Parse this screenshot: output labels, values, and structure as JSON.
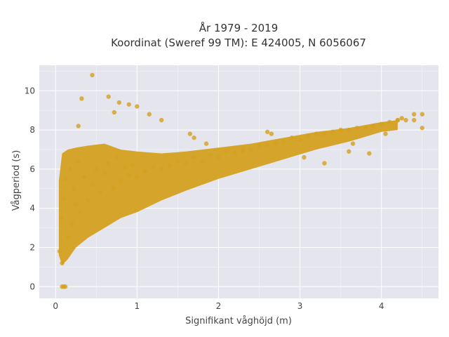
{
  "chart_data": {
    "type": "scatter",
    "title": "År 1979 - 2019",
    "subtitle": "Koordinat (Sweref 99 TM): E 424005, N 6056067",
    "xlabel": "Signifikant våghöjd (m)",
    "ylabel": "Vågperiod (s)",
    "xlim": [
      -0.2,
      4.7
    ],
    "ylim": [
      -0.6,
      11.3
    ],
    "x_ticks": [
      "0",
      "1",
      "2",
      "3",
      "4"
    ],
    "y_ticks": [
      "0",
      "2",
      "4",
      "6",
      "8",
      "10"
    ],
    "grid": true,
    "legend": "none",
    "marker_color": "#d4a020",
    "background_color": "#e5e5ee",
    "series": [
      {
        "x": [
          0.05,
          0.07,
          0.1,
          0.08,
          0.12,
          0.15,
          0.18,
          0.2,
          0.22,
          0.25,
          0.28,
          0.3,
          0.35,
          0.4,
          0.45,
          0.5,
          0.55,
          0.6,
          0.65,
          0.7,
          0.75,
          0.8,
          0.85,
          0.9,
          0.95,
          1.0,
          1.1,
          1.2,
          1.3,
          1.4,
          1.5,
          1.6,
          1.7,
          1.8,
          1.9,
          2.0,
          2.1,
          2.2,
          2.3,
          2.4,
          2.5,
          2.6,
          2.7,
          2.8,
          2.9,
          3.0,
          3.1,
          3.2,
          3.3,
          3.4,
          3.5,
          3.6,
          3.7,
          3.8,
          3.9,
          4.0,
          4.1,
          4.2,
          4.3,
          4.4,
          4.5,
          0.08,
          0.1,
          0.12,
          0.45,
          0.32,
          0.65,
          0.72,
          0.78,
          0.9,
          1.0,
          1.15,
          1.3,
          1.65,
          1.7,
          1.85,
          2.3,
          2.6,
          2.65,
          3.05,
          3.3,
          3.6,
          3.65,
          3.85,
          4.05,
          4.2,
          4.25,
          4.4,
          4.5,
          0.28
        ],
        "y": [
          1.8,
          3.5,
          4.5,
          1.2,
          5.5,
          2.5,
          6.0,
          3.2,
          5.0,
          4.2,
          6.4,
          3.8,
          5.6,
          4.4,
          5.2,
          6.0,
          4.8,
          5.8,
          6.3,
          5.0,
          6.6,
          5.4,
          6.1,
          5.7,
          6.2,
          5.6,
          5.9,
          6.1,
          6.0,
          6.2,
          6.4,
          6.3,
          6.6,
          6.4,
          6.7,
          6.6,
          6.9,
          6.8,
          7.0,
          7.0,
          7.2,
          7.2,
          7.3,
          7.4,
          7.6,
          7.5,
          7.7,
          7.8,
          7.8,
          7.9,
          8.0,
          8.0,
          8.1,
          8.1,
          8.2,
          8.3,
          8.4,
          8.5,
          8.5,
          8.8,
          8.8,
          0.0,
          0.0,
          0.0,
          10.8,
          9.6,
          9.7,
          8.9,
          9.4,
          9.3,
          9.2,
          8.8,
          8.5,
          7.8,
          7.6,
          7.3,
          6.9,
          7.9,
          7.8,
          6.6,
          6.3,
          6.9,
          7.3,
          6.8,
          7.8,
          8.5,
          8.6,
          8.5,
          8.1,
          8.2
        ]
      }
    ]
  }
}
